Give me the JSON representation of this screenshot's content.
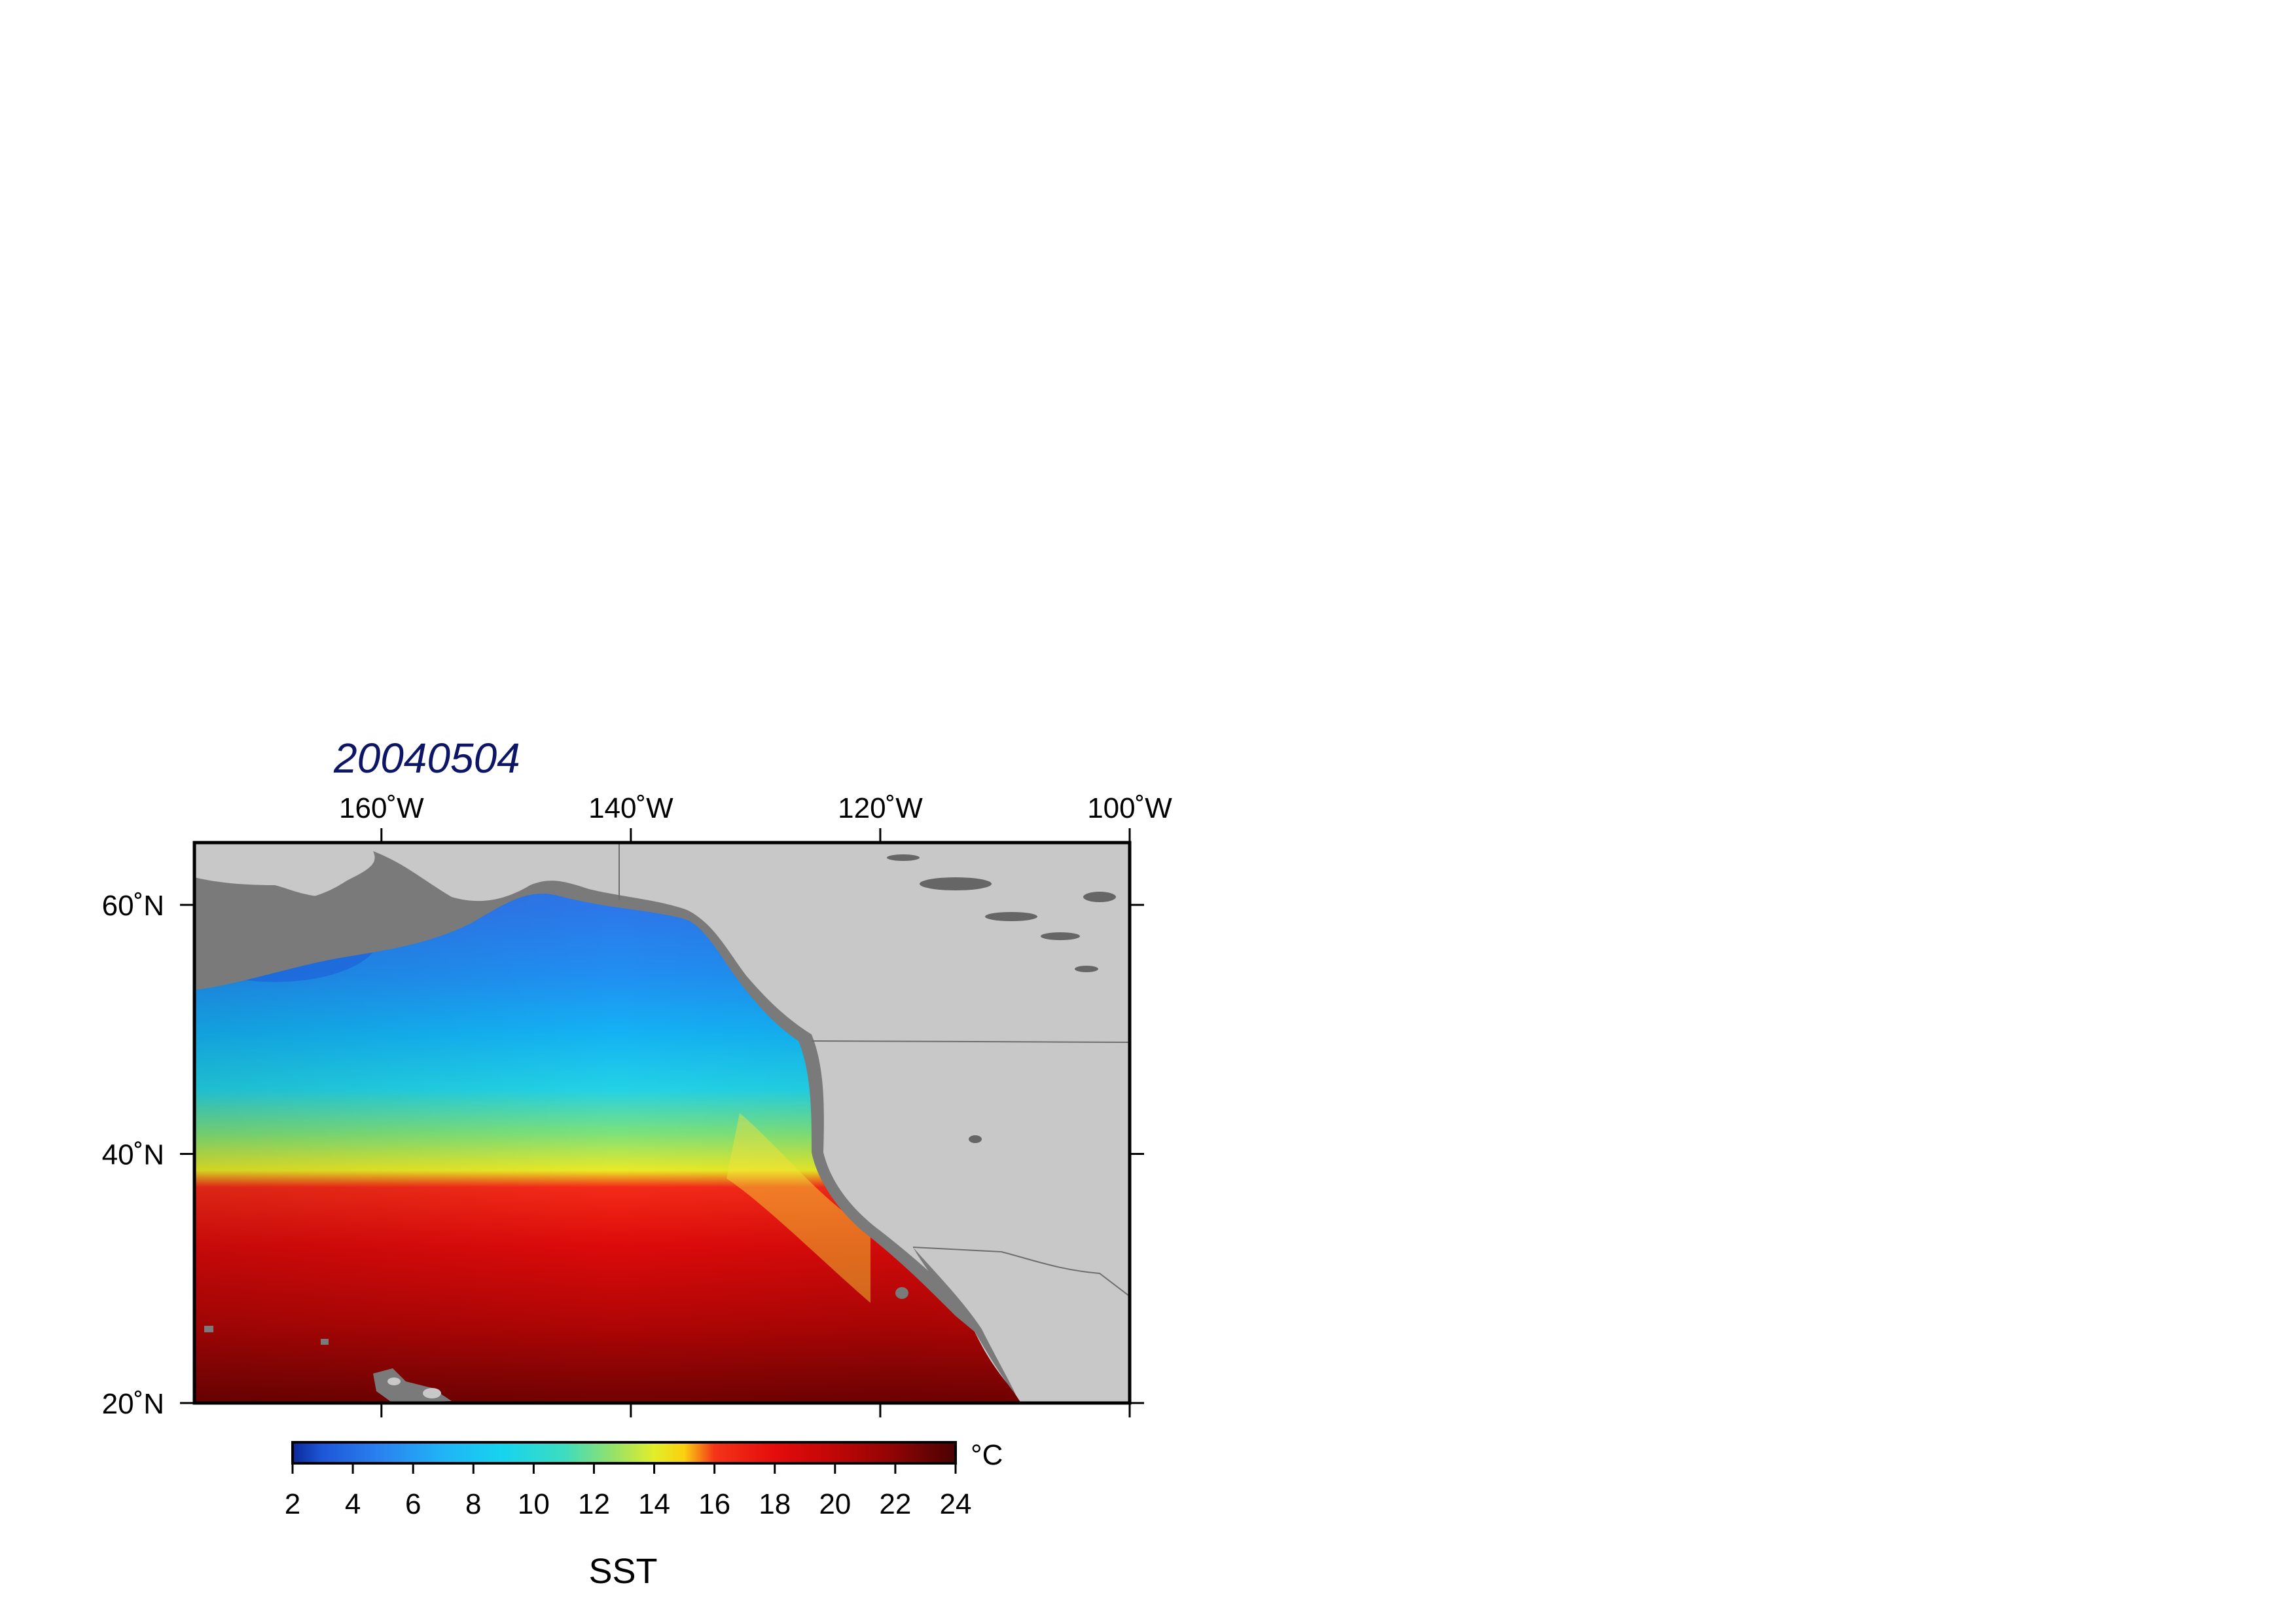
{
  "map": {
    "title": "20040504",
    "title_color": "#0d1566",
    "variable_label": "SST",
    "unit_label": "°C",
    "land_color": "#c8c8c8",
    "coast_shelf_color": "#7a7a7a",
    "lon_range": [
      -175,
      -100
    ],
    "lat_range": [
      20,
      65
    ],
    "lon_ticks": [
      {
        "value": -160,
        "label": "160˚W"
      },
      {
        "value": -140,
        "label": "140˚W"
      },
      {
        "value": -120,
        "label": "120˚W"
      },
      {
        "value": -100,
        "label": "100˚W"
      }
    ],
    "lat_ticks": [
      {
        "value": 60,
        "label": "60˚N"
      },
      {
        "value": 40,
        "label": "40˚N"
      },
      {
        "value": 20,
        "label": "20˚N"
      }
    ]
  },
  "colorbar": {
    "range": [
      2,
      24
    ],
    "tick_labels": [
      "2",
      "4",
      "6",
      "8",
      "10",
      "12",
      "14",
      "16",
      "18",
      "20",
      "22",
      "24"
    ],
    "stops": [
      {
        "value": 2,
        "color": "#0a2a9a"
      },
      {
        "value": 3,
        "color": "#1e56d8"
      },
      {
        "value": 5,
        "color": "#2a84f0"
      },
      {
        "value": 7,
        "color": "#20b4f6"
      },
      {
        "value": 9,
        "color": "#17d4ee"
      },
      {
        "value": 11,
        "color": "#3cdcc0"
      },
      {
        "value": 12.5,
        "color": "#8ee070"
      },
      {
        "value": 14,
        "color": "#e2ee2a"
      },
      {
        "value": 15,
        "color": "#fbd010"
      },
      {
        "value": 16,
        "color": "#f43418"
      },
      {
        "value": 18,
        "color": "#e40c0c"
      },
      {
        "value": 20,
        "color": "#c00606"
      },
      {
        "value": 22,
        "color": "#8e0404"
      },
      {
        "value": 24,
        "color": "#4a0202"
      }
    ]
  }
}
